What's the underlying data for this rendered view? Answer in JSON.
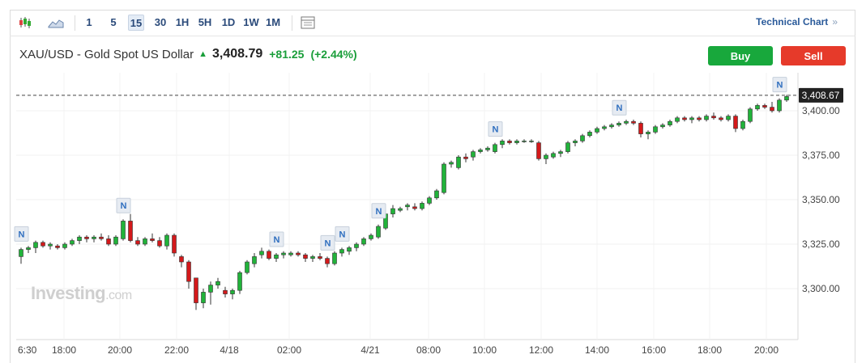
{
  "toolbar": {
    "timeframes": [
      "1",
      "5",
      "15",
      "30",
      "1H",
      "5H",
      "1D",
      "1W",
      "1M"
    ],
    "active_timeframe": "15",
    "technical_chart_label": "Technical Chart",
    "technical_chart_arrow": "»"
  },
  "header": {
    "symbol": "XAU/USD - Gold Spot US Dollar",
    "price": "3,408.79",
    "change": "+81.25",
    "change_pct": "(+2.44%)",
    "buy_label": "Buy",
    "sell_label": "Sell"
  },
  "colors": {
    "up": "#21b33a",
    "down": "#d4191b",
    "buy": "#18a83c",
    "sell": "#e63a2a",
    "accent": "#2a5a9a"
  },
  "watermark": {
    "brand": "Investing",
    "suffix": ".com"
  },
  "chart_data": {
    "type": "candlestick",
    "symbol": "XAU/USD",
    "interval": "15",
    "last_price_label": "3,408.67",
    "ylim": [
      3285,
      3415
    ],
    "y_ticks": [
      "3,300.00",
      "3,325.00",
      "3,350.00",
      "3,375.00",
      "3,400.00"
    ],
    "y_tick_values": [
      3300,
      3325,
      3350,
      3375,
      3400
    ],
    "x_ticks": [
      "6:30",
      "18:00",
      "20:00",
      "22:00",
      "4/18",
      "02:00",
      "4/21",
      "08:00",
      "10:00",
      "12:00",
      "14:00",
      "16:00",
      "18:00",
      "20:00"
    ],
    "news_marker": "N",
    "news_marker_bars": [
      0,
      14,
      35,
      42,
      44,
      49,
      65,
      82,
      104
    ],
    "last_price": 3408.67,
    "candles": [
      [
        3318,
        3323,
        3314,
        3322
      ],
      [
        3322,
        3324,
        3320,
        3323
      ],
      [
        3323,
        3327,
        3320,
        3326
      ],
      [
        3326,
        3327,
        3323,
        3324
      ],
      [
        3324,
        3326,
        3322,
        3325
      ],
      [
        3324,
        3325,
        3322,
        3323
      ],
      [
        3323,
        3326,
        3322,
        3325
      ],
      [
        3325,
        3328,
        3324,
        3327
      ],
      [
        3327,
        3330,
        3325,
        3329
      ],
      [
        3329,
        3330,
        3326,
        3328
      ],
      [
        3328,
        3330,
        3326,
        3329
      ],
      [
        3329,
        3331,
        3327,
        3328
      ],
      [
        3328,
        3330,
        3324,
        3325
      ],
      [
        3325,
        3330,
        3324,
        3329
      ],
      [
        3328,
        3339,
        3327,
        3338
      ],
      [
        3338,
        3342,
        3326,
        3327
      ],
      [
        3327,
        3329,
        3324,
        3325
      ],
      [
        3325,
        3329,
        3324,
        3328
      ],
      [
        3328,
        3331,
        3326,
        3327
      ],
      [
        3327,
        3329,
        3323,
        3324
      ],
      [
        3324,
        3331,
        3322,
        3330
      ],
      [
        3330,
        3331,
        3318,
        3320
      ],
      [
        3318,
        3319,
        3312,
        3315
      ],
      [
        3315,
        3316,
        3300,
        3304
      ],
      [
        3306,
        3306,
        3288,
        3292
      ],
      [
        3292,
        3300,
        3289,
        3298
      ],
      [
        3298,
        3304,
        3291,
        3302
      ],
      [
        3302,
        3306,
        3300,
        3304
      ],
      [
        3299,
        3301,
        3295,
        3297
      ],
      [
        3297,
        3300,
        3294,
        3299
      ],
      [
        3299,
        3310,
        3297,
        3309
      ],
      [
        3309,
        3316,
        3308,
        3315
      ],
      [
        3314,
        3320,
        3312,
        3318
      ],
      [
        3319,
        3323,
        3317,
        3321
      ],
      [
        3321,
        3322,
        3316,
        3317
      ],
      [
        3317,
        3320,
        3315,
        3319
      ],
      [
        3319,
        3321,
        3317,
        3320
      ],
      [
        3319,
        3321,
        3318,
        3320
      ],
      [
        3320,
        3321,
        3318,
        3319
      ],
      [
        3319,
        3320,
        3315,
        3317
      ],
      [
        3317,
        3319,
        3315,
        3318
      ],
      [
        3318,
        3320,
        3316,
        3317
      ],
      [
        3317,
        3318,
        3312,
        3314
      ],
      [
        3314,
        3321,
        3313,
        3320
      ],
      [
        3320,
        3323,
        3318,
        3322
      ],
      [
        3321,
        3324,
        3319,
        3323
      ],
      [
        3323,
        3326,
        3321,
        3325
      ],
      [
        3325,
        3329,
        3324,
        3328
      ],
      [
        3328,
        3331,
        3327,
        3330
      ],
      [
        3329,
        3336,
        3328,
        3335
      ],
      [
        3334,
        3343,
        3333,
        3342
      ],
      [
        3342,
        3347,
        3340,
        3345
      ],
      [
        3344,
        3346,
        3343,
        3345
      ],
      [
        3346,
        3348,
        3344,
        3347
      ],
      [
        3346,
        3348,
        3344,
        3345
      ],
      [
        3345,
        3349,
        3344,
        3348
      ],
      [
        3348,
        3352,
        3347,
        3351
      ],
      [
        3351,
        3356,
        3350,
        3355
      ],
      [
        3354,
        3371,
        3353,
        3370
      ],
      [
        3370,
        3372,
        3368,
        3371
      ],
      [
        3368,
        3375,
        3367,
        3374
      ],
      [
        3374,
        3376,
        3371,
        3373
      ],
      [
        3374,
        3378,
        3372,
        3377
      ],
      [
        3377,
        3379,
        3376,
        3378
      ],
      [
        3378,
        3380,
        3377,
        3379
      ],
      [
        3377,
        3382,
        3376,
        3381
      ],
      [
        3381,
        3384,
        3379,
        3383
      ],
      [
        3383,
        3384,
        3381,
        3382
      ],
      [
        3382,
        3384,
        3381,
        3383
      ],
      [
        3383,
        3384,
        3382,
        3383
      ],
      [
        3383,
        3384,
        3382,
        3383
      ],
      [
        3382,
        3383,
        3372,
        3373
      ],
      [
        3373,
        3376,
        3370,
        3375
      ],
      [
        3374,
        3377,
        3373,
        3376
      ],
      [
        3376,
        3378,
        3374,
        3377
      ],
      [
        3377,
        3383,
        3376,
        3382
      ],
      [
        3382,
        3384,
        3380,
        3383
      ],
      [
        3383,
        3387,
        3382,
        3386
      ],
      [
        3386,
        3389,
        3385,
        3388
      ],
      [
        3388,
        3391,
        3387,
        3390
      ],
      [
        3390,
        3392,
        3389,
        3391
      ],
      [
        3391,
        3393,
        3390,
        3392
      ],
      [
        3392,
        3394,
        3391,
        3393
      ],
      [
        3393,
        3395,
        3392,
        3394
      ],
      [
        3394,
        3395,
        3392,
        3393
      ],
      [
        3393,
        3394,
        3385,
        3387
      ],
      [
        3387,
        3389,
        3384,
        3388
      ],
      [
        3388,
        3392,
        3387,
        3391
      ],
      [
        3391,
        3393,
        3390,
        3392
      ],
      [
        3392,
        3395,
        3391,
        3394
      ],
      [
        3394,
        3397,
        3393,
        3396
      ],
      [
        3396,
        3397,
        3394,
        3395
      ],
      [
        3395,
        3397,
        3393,
        3396
      ],
      [
        3396,
        3397,
        3394,
        3395
      ],
      [
        3395,
        3398,
        3394,
        3397
      ],
      [
        3397,
        3399,
        3395,
        3396
      ],
      [
        3396,
        3397,
        3394,
        3395
      ],
      [
        3395,
        3398,
        3394,
        3397
      ],
      [
        3397,
        3398,
        3388,
        3390
      ],
      [
        3390,
        3395,
        3389,
        3394
      ],
      [
        3394,
        3402,
        3393,
        3401
      ],
      [
        3401,
        3404,
        3400,
        3403
      ],
      [
        3403,
        3404,
        3401,
        3402
      ],
      [
        3402,
        3405,
        3399,
        3400
      ],
      [
        3400,
        3407,
        3399,
        3406
      ],
      [
        3406,
        3409,
        3405,
        3408
      ]
    ]
  }
}
